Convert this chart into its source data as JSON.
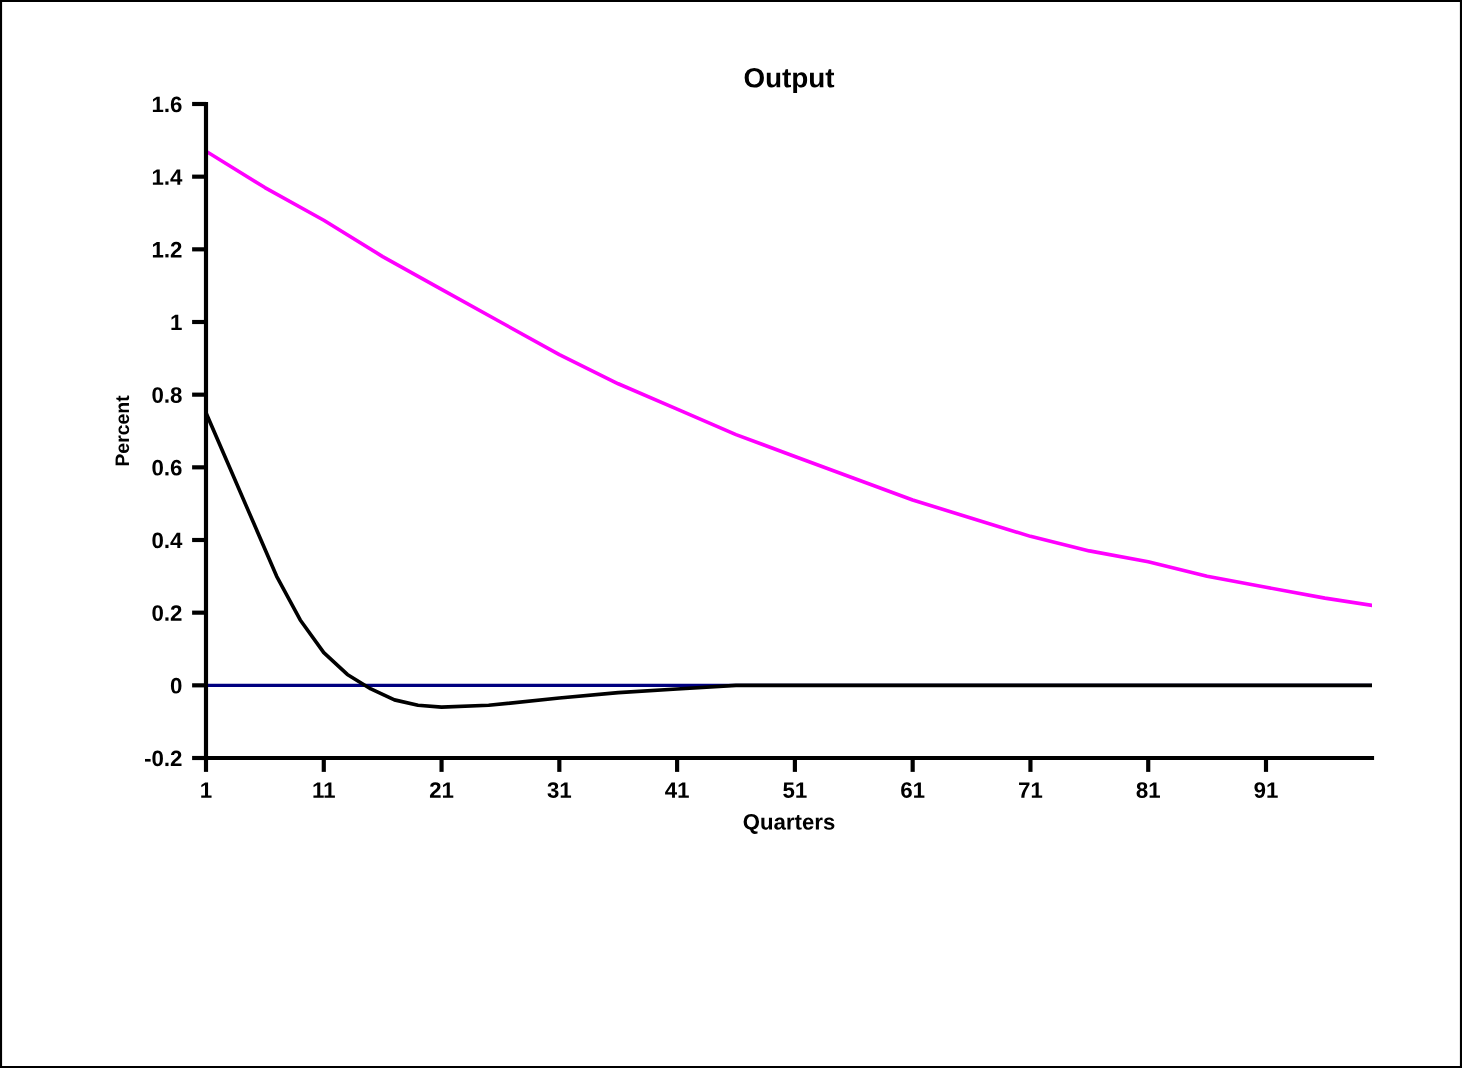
{
  "chart_data": {
    "type": "line",
    "title": "Output",
    "xlabel": "Quarters",
    "ylabel": "Percent",
    "xlim": [
      1,
      100
    ],
    "xticks": [
      1,
      11,
      21,
      31,
      41,
      51,
      61,
      71,
      81,
      91
    ],
    "ylim": [
      -0.2,
      1.6
    ],
    "yticks": [
      {
        "value": -0.2,
        "label": "-0.2"
      },
      0,
      0.2,
      0.4,
      0.6,
      0.8,
      1,
      1.2,
      1.4,
      1.6
    ],
    "grid": false,
    "marker": "none",
    "line_style": "solid",
    "ref_lines": [
      {
        "axis": "y",
        "value": 0,
        "color": "#000080"
      }
    ],
    "series": [
      {
        "color": "#ff00ff",
        "x": [
          1,
          6,
          11,
          16,
          21,
          26,
          31,
          36,
          41,
          46,
          51,
          56,
          61,
          66,
          71,
          76,
          81,
          86,
          91,
          96,
          100
        ],
        "values": [
          1.47,
          1.37,
          1.28,
          1.18,
          1.09,
          1.0,
          0.91,
          0.83,
          0.76,
          0.69,
          0.63,
          0.57,
          0.51,
          0.46,
          0.41,
          0.37,
          0.34,
          0.3,
          0.27,
          0.24,
          0.22
        ]
      },
      {
        "color": "#000000",
        "x": [
          1,
          3,
          5,
          7,
          9,
          11,
          13,
          15,
          17,
          19,
          21,
          25,
          31,
          36,
          41,
          46,
          51,
          61,
          71,
          81,
          91,
          100
        ],
        "values": [
          0.75,
          0.6,
          0.45,
          0.3,
          0.18,
          0.09,
          0.03,
          -0.01,
          -0.04,
          -0.055,
          -0.06,
          -0.055,
          -0.035,
          -0.02,
          -0.01,
          0.0,
          0.0,
          0.0,
          0.0,
          0.0,
          0.0,
          0.0
        ]
      }
    ]
  }
}
